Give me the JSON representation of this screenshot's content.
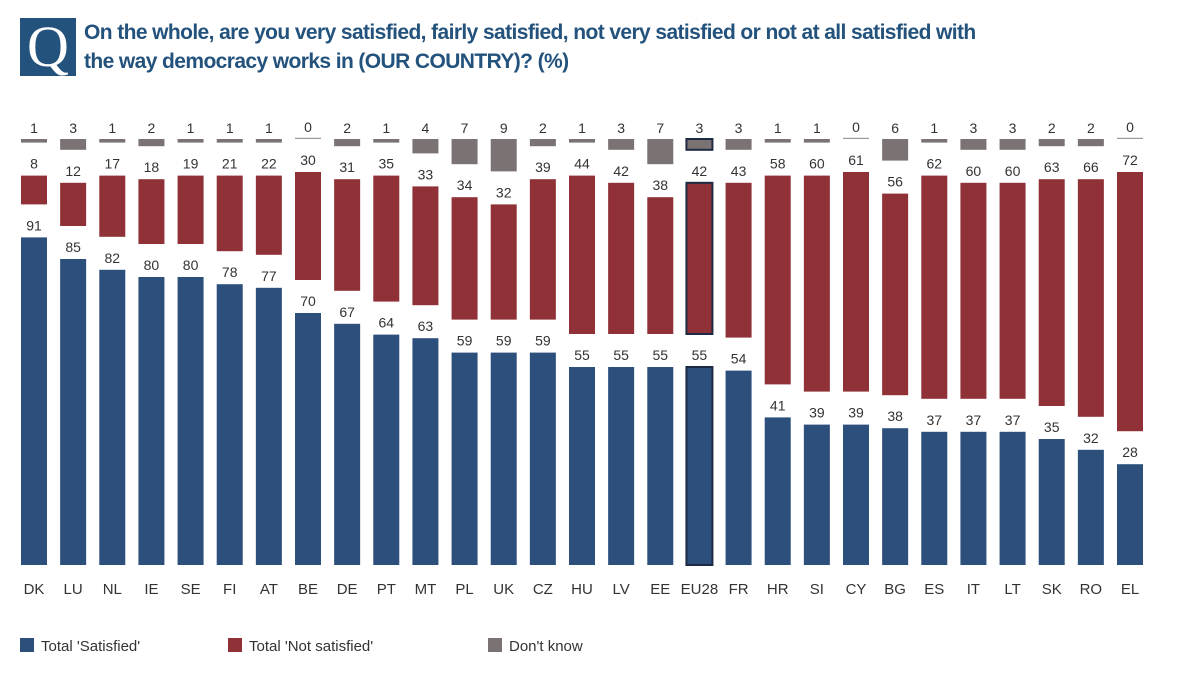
{
  "header": {
    "q_logo": "Q",
    "title": "On the whole, are you very satisfied, fairly satisfied, not very satisfied or not at all satisfied with the way democracy works in (OUR COUNTRY)? (%)"
  },
  "chart_data": {
    "type": "bar",
    "stacked": true,
    "title": "On the whole, are you very satisfied, fairly satisfied, not very satisfied or not at all satisfied with the way democracy works in (OUR COUNTRY)? (%)",
    "categories": [
      "DK",
      "LU",
      "NL",
      "IE",
      "SE",
      "FI",
      "AT",
      "BE",
      "DE",
      "PT",
      "MT",
      "PL",
      "UK",
      "CZ",
      "HU",
      "LV",
      "EE",
      "EU28",
      "FR",
      "HR",
      "SI",
      "CY",
      "BG",
      "ES",
      "IT",
      "LT",
      "SK",
      "RO",
      "EL"
    ],
    "highlight": "EU28",
    "series": [
      {
        "name": "Total 'Satisfied'",
        "color": "#2c4f7c",
        "values": [
          91,
          85,
          82,
          80,
          80,
          78,
          77,
          70,
          67,
          64,
          63,
          59,
          59,
          59,
          55,
          55,
          55,
          55,
          54,
          41,
          39,
          39,
          38,
          37,
          37,
          37,
          35,
          32,
          28
        ]
      },
      {
        "name": "Total 'Not satisfied'",
        "color": "#8f3137",
        "values": [
          8,
          12,
          17,
          18,
          19,
          21,
          22,
          30,
          31,
          35,
          33,
          34,
          32,
          39,
          44,
          42,
          38,
          42,
          43,
          58,
          60,
          61,
          56,
          62,
          60,
          60,
          63,
          66,
          72
        ]
      },
      {
        "name": "Don't know",
        "color": "#7b7373",
        "values": [
          1,
          3,
          1,
          2,
          1,
          1,
          1,
          0,
          2,
          1,
          4,
          7,
          9,
          2,
          1,
          3,
          7,
          3,
          3,
          1,
          1,
          0,
          6,
          1,
          3,
          3,
          2,
          2,
          0
        ]
      }
    ],
    "legend": "bottom-left",
    "grid": false,
    "ylim": [
      0,
      100
    ]
  }
}
